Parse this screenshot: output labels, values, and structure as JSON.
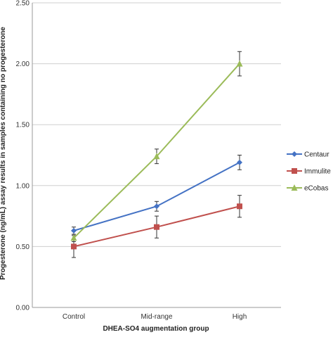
{
  "chart_data": {
    "type": "line",
    "title": "",
    "xlabel": "DHEA-SO4 augmentation group",
    "ylabel": "Progesterone (ng/mL) assay results in samples containing no progesterone",
    "categories": [
      "Control",
      "Mid-range",
      "High"
    ],
    "ylim": [
      0,
      2.5
    ],
    "yticks": [
      "0.00",
      "0.50",
      "1.00",
      "1.50",
      "2.00",
      "2.50"
    ],
    "grid": "horizontal",
    "legend_position": "right",
    "series": [
      {
        "name": "Centaur",
        "values": [
          0.63,
          0.83,
          1.19
        ],
        "errors": [
          0.03,
          0.04,
          0.06
        ],
        "color": "#4472C4",
        "marker": "diamond"
      },
      {
        "name": "Immulite",
        "values": [
          0.5,
          0.66,
          0.83
        ],
        "errors": [
          0.09,
          0.09,
          0.09
        ],
        "color": "#C0504D",
        "marker": "square"
      },
      {
        "name": "eCobas",
        "values": [
          0.57,
          1.24,
          2.0
        ],
        "errors": [
          0.03,
          0.06,
          0.1
        ],
        "color": "#9BBB59",
        "marker": "triangle"
      }
    ]
  }
}
